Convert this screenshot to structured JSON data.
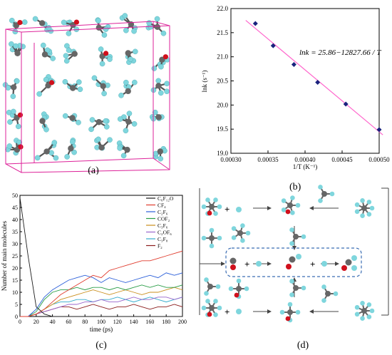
{
  "captions": {
    "a": "(a)",
    "b": "(b)",
    "c": "(c)",
    "d": "(d)"
  },
  "colors": {
    "atom_c": "#666666",
    "atom_f": "#7fd6dd",
    "atom_o": "#d0101c",
    "box": "#dd2299",
    "fit_line": "#ff66cc",
    "marker": "#1a237e"
  },
  "icons": {
    "panel_a": "molecular-box-illustration",
    "panel_d": "reaction-pathway-diagram"
  },
  "chart_data": [
    {
      "type": "scatter",
      "title": "",
      "xlabel": "1/T (K⁻¹)",
      "ylabel": "lnk (s⁻¹)",
      "xlim": [
        0.0003,
        0.0005
      ],
      "ylim": [
        19.0,
        22.0
      ],
      "xticks": [
        "0.00030",
        "0.00035",
        "0.00040",
        "0.00045",
        "0.00050"
      ],
      "yticks": [
        "19.0",
        "19.5",
        "20.0",
        "20.5",
        "21.0",
        "21.5",
        "22.0"
      ],
      "x": [
        0.000333,
        0.000357,
        0.000385,
        0.000417,
        0.000455,
        0.0005
      ],
      "y": [
        21.69,
        21.23,
        20.84,
        20.47,
        20.02,
        19.49
      ],
      "fit": {
        "intercept": 25.86,
        "slope": -12827.66
      },
      "annotation": "lnk = 25.86−12827.66 / T",
      "grid": false
    },
    {
      "type": "line",
      "title": "",
      "xlabel": "time (ps)",
      "ylabel": "Number of main molecules",
      "xlim": [
        0,
        200
      ],
      "ylim": [
        0,
        50
      ],
      "xticks": [
        "0",
        "20",
        "40",
        "60",
        "80",
        "100",
        "120",
        "140",
        "160",
        "180",
        "200"
      ],
      "yticks": [
        "0",
        "5",
        "10",
        "15",
        "20",
        "25",
        "30",
        "35",
        "40",
        "45",
        "50"
      ],
      "legend_position": "top-right",
      "x": [
        0,
        10,
        20,
        30,
        40,
        50,
        60,
        70,
        80,
        90,
        100,
        110,
        120,
        130,
        140,
        150,
        160,
        170,
        180,
        190,
        200
      ],
      "series": [
        {
          "name": "C₆F₁₂O",
          "color": "#1b1b1b",
          "values": [
            49,
            25,
            4,
            1,
            0,
            0,
            0,
            0,
            0,
            0,
            0,
            0,
            0,
            0,
            0,
            0,
            0,
            0,
            0,
            0,
            0
          ]
        },
        {
          "name": "CF₄",
          "color": "#e03b2d",
          "values": [
            0,
            0,
            1,
            3,
            6,
            9,
            11,
            13,
            15,
            17,
            16,
            19,
            20,
            21,
            22,
            23,
            23,
            24,
            25,
            26,
            27
          ]
        },
        {
          "name": "C₂F₆",
          "color": "#2b5fd9",
          "values": [
            0,
            0,
            3,
            8,
            11,
            13,
            15,
            16,
            17,
            16,
            14,
            16,
            15,
            14,
            15,
            16,
            17,
            16,
            18,
            17,
            18
          ]
        },
        {
          "name": "COF₂",
          "color": "#2a9d47",
          "values": [
            0,
            0,
            2,
            7,
            10,
            11,
            11,
            12,
            11,
            12,
            12,
            11,
            12,
            11,
            12,
            13,
            12,
            13,
            12,
            12,
            13
          ]
        },
        {
          "name": "C₃F₆",
          "color": "#c98d1a",
          "values": [
            0,
            0,
            1,
            3,
            5,
            7,
            8,
            9,
            10,
            11,
            10,
            9,
            10,
            11,
            10,
            9,
            10,
            10,
            11,
            12,
            11
          ]
        },
        {
          "name": "C₂OF₆",
          "color": "#9966cc",
          "values": [
            0,
            0,
            1,
            2,
            3,
            4,
            5,
            5,
            6,
            6,
            7,
            6,
            6,
            7,
            8,
            7,
            7,
            8,
            8,
            7,
            8
          ]
        },
        {
          "name": "C₃F₈",
          "color": "#33aacc",
          "values": [
            0,
            0,
            1,
            3,
            5,
            6,
            6,
            7,
            7,
            6,
            7,
            7,
            8,
            7,
            6,
            7,
            8,
            7,
            6,
            7,
            8
          ]
        },
        {
          "name": "F₂",
          "color": "#8b1c1c",
          "values": [
            0,
            0,
            1,
            2,
            3,
            4,
            4,
            3,
            4,
            5,
            4,
            3,
            4,
            4,
            5,
            4,
            3,
            4,
            4,
            5,
            4
          ]
        }
      ]
    }
  ]
}
